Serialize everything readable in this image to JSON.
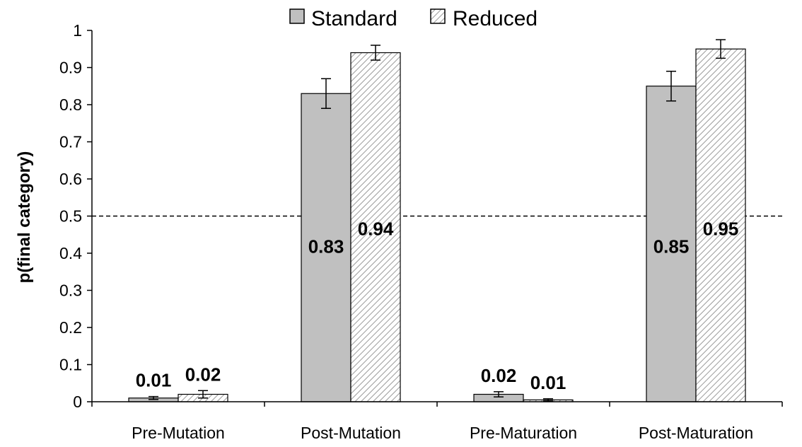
{
  "chart_data": {
    "type": "bar",
    "title": "",
    "xlabel": "",
    "ylabel": "p(final category)",
    "ylim": [
      0,
      1
    ],
    "yticks": [
      "0",
      "0.1",
      "0.2",
      "0.3",
      "0.4",
      "0.5",
      "0.6",
      "0.7",
      "0.8",
      "0.9",
      "1"
    ],
    "categories": [
      "Pre-Mutation",
      "Post-Mutation",
      "Pre-Maturation",
      "Post-Maturation"
    ],
    "series": [
      {
        "name": "Standard",
        "values": [
          0.01,
          0.83,
          0.02,
          0.85
        ],
        "labels": [
          "0.01",
          "0.83",
          "0.02",
          "0.85"
        ],
        "error": [
          0.004,
          0.04,
          0.007,
          0.04
        ],
        "fill": "#c0c0c0"
      },
      {
        "name": "Reduced",
        "values": [
          0.02,
          0.94,
          0.005,
          0.95
        ],
        "labels": [
          "0.02",
          "0.94",
          "0.01",
          "0.95"
        ],
        "error": [
          0.01,
          0.02,
          0.003,
          0.025
        ],
        "fill": "hatched"
      }
    ],
    "reference_line": 0.5,
    "legend": {
      "position": "top-center"
    },
    "grid": false
  }
}
